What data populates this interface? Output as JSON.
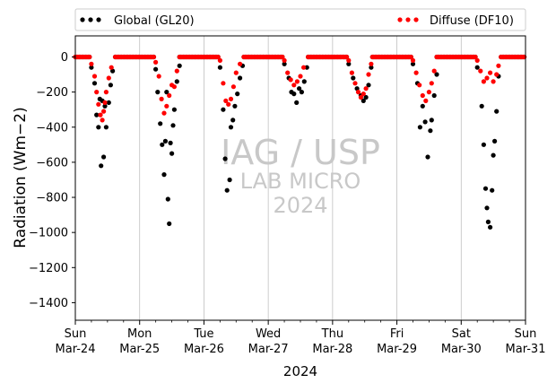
{
  "chart_data": {
    "type": "scatter",
    "title": "",
    "xlabel": "2024",
    "ylabel": "Radiation (Wm−2)",
    "ylim": [
      -1500,
      120
    ],
    "yticks": [
      0,
      -200,
      -400,
      -600,
      -800,
      -1000,
      -1200,
      -1400
    ],
    "xlim": [
      "2024-03-24",
      "2024-03-31"
    ],
    "xticks": [
      {
        "day": "Sun",
        "date": "Mar-24"
      },
      {
        "day": "Mon",
        "date": "Mar-25"
      },
      {
        "day": "Tue",
        "date": "Mar-26"
      },
      {
        "day": "Wed",
        "date": "Mar-27"
      },
      {
        "day": "Thu",
        "date": "Mar-28"
      },
      {
        "day": "Fri",
        "date": "Mar-29"
      },
      {
        "day": "Sat",
        "date": "Mar-30"
      },
      {
        "day": "Sun",
        "date": "Mar-31"
      }
    ],
    "grid": "vertical lines at each day",
    "legend_position": "top, above plot",
    "watermark": {
      "line1": "IAG / USP",
      "line2": "LAB MICRO",
      "line3": "2024"
    },
    "series": [
      {
        "name": "Global (GL20)",
        "color": "#000000",
        "points": [
          [
            0.25,
            -60
          ],
          [
            0.3,
            -150
          ],
          [
            0.33,
            -330
          ],
          [
            0.36,
            -400
          ],
          [
            0.38,
            -240
          ],
          [
            0.4,
            -620
          ],
          [
            0.42,
            -250
          ],
          [
            0.44,
            -570
          ],
          [
            0.46,
            -280
          ],
          [
            0.48,
            -400
          ],
          [
            0.52,
            -260
          ],
          [
            0.55,
            -160
          ],
          [
            0.58,
            -80
          ],
          [
            1.25,
            -70
          ],
          [
            1.28,
            -200
          ],
          [
            1.32,
            -380
          ],
          [
            1.35,
            -500
          ],
          [
            1.38,
            -670
          ],
          [
            1.4,
            -480
          ],
          [
            1.42,
            -200
          ],
          [
            1.44,
            -810
          ],
          [
            1.46,
            -950
          ],
          [
            1.48,
            -490
          ],
          [
            1.5,
            -550
          ],
          [
            1.52,
            -390
          ],
          [
            1.54,
            -300
          ],
          [
            1.58,
            -140
          ],
          [
            1.62,
            -50
          ],
          [
            2.25,
            -60
          ],
          [
            2.3,
            -300
          ],
          [
            2.33,
            -580
          ],
          [
            2.36,
            -760
          ],
          [
            2.4,
            -700
          ],
          [
            2.42,
            -400
          ],
          [
            2.45,
            -360
          ],
          [
            2.48,
            -280
          ],
          [
            2.52,
            -210
          ],
          [
            2.56,
            -120
          ],
          [
            2.6,
            -50
          ],
          [
            3.25,
            -40
          ],
          [
            3.32,
            -120
          ],
          [
            3.36,
            -200
          ],
          [
            3.4,
            -210
          ],
          [
            3.44,
            -260
          ],
          [
            3.48,
            -180
          ],
          [
            3.52,
            -200
          ],
          [
            3.56,
            -140
          ],
          [
            3.6,
            -60
          ],
          [
            4.25,
            -40
          ],
          [
            4.32,
            -120
          ],
          [
            4.38,
            -180
          ],
          [
            4.44,
            -220
          ],
          [
            4.48,
            -250
          ],
          [
            4.52,
            -230
          ],
          [
            4.56,
            -160
          ],
          [
            4.6,
            -60
          ],
          [
            5.25,
            -40
          ],
          [
            5.32,
            -150
          ],
          [
            5.36,
            -400
          ],
          [
            5.4,
            -280
          ],
          [
            5.44,
            -370
          ],
          [
            5.48,
            -570
          ],
          [
            5.52,
            -420
          ],
          [
            5.54,
            -360
          ],
          [
            5.58,
            -220
          ],
          [
            5.62,
            -100
          ],
          [
            6.25,
            -60
          ],
          [
            6.32,
            -280
          ],
          [
            6.35,
            -500
          ],
          [
            6.38,
            -750
          ],
          [
            6.4,
            -860
          ],
          [
            6.42,
            -940
          ],
          [
            6.45,
            -970
          ],
          [
            6.48,
            -760
          ],
          [
            6.5,
            -560
          ],
          [
            6.52,
            -480
          ],
          [
            6.55,
            -310
          ],
          [
            6.58,
            -110
          ]
        ]
      },
      {
        "name": "Diffuse (DF10)",
        "color": "#ff0000",
        "points": [
          [
            0.25,
            -40
          ],
          [
            0.3,
            -110
          ],
          [
            0.33,
            -200
          ],
          [
            0.36,
            -270
          ],
          [
            0.39,
            -330
          ],
          [
            0.42,
            -360
          ],
          [
            0.44,
            -310
          ],
          [
            0.46,
            -260
          ],
          [
            0.48,
            -200
          ],
          [
            0.52,
            -120
          ],
          [
            0.56,
            -60
          ],
          [
            1.25,
            -30
          ],
          [
            1.3,
            -110
          ],
          [
            1.34,
            -240
          ],
          [
            1.38,
            -320
          ],
          [
            1.42,
            -280
          ],
          [
            1.46,
            -220
          ],
          [
            1.5,
            -160
          ],
          [
            1.54,
            -170
          ],
          [
            1.58,
            -80
          ],
          [
            2.25,
            -20
          ],
          [
            2.3,
            -150
          ],
          [
            2.34,
            -250
          ],
          [
            2.38,
            -270
          ],
          [
            2.42,
            -240
          ],
          [
            2.46,
            -170
          ],
          [
            2.5,
            -90
          ],
          [
            2.56,
            -40
          ],
          [
            3.25,
            -20
          ],
          [
            3.3,
            -90
          ],
          [
            3.35,
            -130
          ],
          [
            3.4,
            -160
          ],
          [
            3.45,
            -140
          ],
          [
            3.5,
            -110
          ],
          [
            3.55,
            -60
          ],
          [
            4.25,
            -20
          ],
          [
            4.3,
            -90
          ],
          [
            4.35,
            -150
          ],
          [
            4.4,
            -200
          ],
          [
            4.44,
            -230
          ],
          [
            4.48,
            -210
          ],
          [
            4.52,
            -180
          ],
          [
            4.56,
            -100
          ],
          [
            4.6,
            -40
          ],
          [
            5.25,
            -20
          ],
          [
            5.3,
            -90
          ],
          [
            5.35,
            -160
          ],
          [
            5.4,
            -220
          ],
          [
            5.45,
            -250
          ],
          [
            5.5,
            -200
          ],
          [
            5.54,
            -150
          ],
          [
            5.58,
            -80
          ],
          [
            6.25,
            -20
          ],
          [
            6.3,
            -80
          ],
          [
            6.35,
            -140
          ],
          [
            6.4,
            -120
          ],
          [
            6.45,
            -90
          ],
          [
            6.5,
            -140
          ],
          [
            6.55,
            -100
          ],
          [
            6.58,
            -50
          ]
        ]
      }
    ]
  }
}
